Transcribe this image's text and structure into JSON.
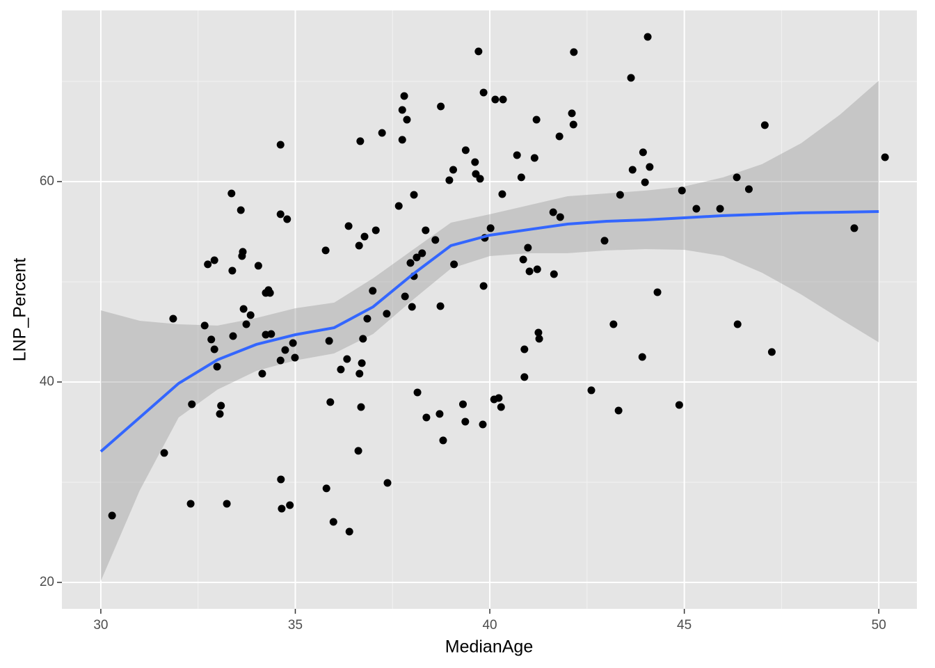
{
  "chart_data": {
    "type": "scatter",
    "x_label": "MedianAge",
    "y_label": "LNP_Percent",
    "xlim": [
      29.0,
      50.98
    ],
    "ylim": [
      17.36,
      77.08
    ],
    "xticks": [
      30,
      35,
      40,
      45,
      50
    ],
    "yticks": [
      20,
      40,
      60
    ],
    "minor_xticks": [
      32.5,
      37.5,
      42.5,
      47.5
    ],
    "minor_yticks": [
      30,
      50,
      70
    ],
    "grid": true,
    "background": "#e5e5e5",
    "series": [
      {
        "color": "#000000",
        "x": [
          30.29,
          31.63,
          31.86,
          32.31,
          32.34,
          32.67,
          32.75,
          32.84,
          32.92,
          32.92,
          32.99,
          33.06,
          33.09,
          33.24,
          33.36,
          33.38,
          33.4,
          33.6,
          33.63,
          33.65,
          33.67,
          33.74,
          33.85,
          34.05,
          34.15,
          34.24,
          34.24,
          34.31,
          34.35,
          34.38,
          34.62,
          34.62,
          34.62,
          34.63,
          34.65,
          34.74,
          34.79,
          34.86,
          34.94,
          34.99,
          35.78,
          35.8,
          35.87,
          35.9,
          35.98,
          36.17,
          36.33,
          36.37,
          36.39,
          36.62,
          36.64,
          36.65,
          36.67,
          36.69,
          36.71,
          36.74,
          36.78,
          36.85,
          36.99,
          37.07,
          37.23,
          37.35,
          37.37,
          37.66,
          37.75,
          37.75,
          37.8,
          37.82,
          37.87,
          37.96,
          38.0,
          38.05,
          38.05,
          38.12,
          38.14,
          38.26,
          38.35,
          38.37,
          38.6,
          38.71,
          38.73,
          38.74,
          38.8,
          38.96,
          39.06,
          39.08,
          39.31,
          39.37,
          39.38,
          39.62,
          39.64,
          39.71,
          39.75,
          39.82,
          39.84,
          39.84,
          39.87,
          40.02,
          40.11,
          40.14,
          40.23,
          40.29,
          40.34,
          40.32,
          40.7,
          40.81,
          40.86,
          40.89,
          40.89,
          40.98,
          41.02,
          41.15,
          41.2,
          41.22,
          41.25,
          41.27,
          41.63,
          41.65,
          41.79,
          41.81,
          42.11,
          42.15,
          42.16,
          42.61,
          42.95,
          43.18,
          43.31,
          43.35,
          43.63,
          43.67,
          43.92,
          43.94,
          43.99,
          44.06,
          44.11,
          44.31,
          44.87,
          44.94,
          45.31,
          45.92,
          46.35,
          46.37,
          46.66,
          47.07,
          47.25,
          49.37,
          50.16
        ],
        "values": [
          26.67,
          32.92,
          46.32,
          27.85,
          37.78,
          45.63,
          51.74,
          44.24,
          52.15,
          43.26,
          41.53,
          36.81,
          37.64,
          27.85,
          58.82,
          51.11,
          44.58,
          57.15,
          52.57,
          52.99,
          47.29,
          45.76,
          46.67,
          51.6,
          40.83,
          44.72,
          48.89,
          49.17,
          48.89,
          44.79,
          63.68,
          56.74,
          42.15,
          30.28,
          27.36,
          43.19,
          56.25,
          27.71,
          43.89,
          42.43,
          53.13,
          29.38,
          44.1,
          37.99,
          26.04,
          41.25,
          42.29,
          55.56,
          25.07,
          33.13,
          53.61,
          40.83,
          64.03,
          37.5,
          41.88,
          44.31,
          54.51,
          46.32,
          49.1,
          55.14,
          64.86,
          46.81,
          29.93,
          57.57,
          67.15,
          64.17,
          68.54,
          48.54,
          66.18,
          51.88,
          47.5,
          58.68,
          50.56,
          52.43,
          38.96,
          52.85,
          55.14,
          36.46,
          54.17,
          36.81,
          47.57,
          67.5,
          34.17,
          60.14,
          61.18,
          51.74,
          37.78,
          36.04,
          63.13,
          61.94,
          60.76,
          72.99,
          60.28,
          35.76,
          68.89,
          49.58,
          54.38,
          55.35,
          38.26,
          68.19,
          38.4,
          37.5,
          68.19,
          58.75,
          62.64,
          60.42,
          52.22,
          40.49,
          43.26,
          53.4,
          51.04,
          62.36,
          66.18,
          51.25,
          44.93,
          44.31,
          56.94,
          50.76,
          64.51,
          56.46,
          66.81,
          65.69,
          72.92,
          39.17,
          54.1,
          45.76,
          37.15,
          58.68,
          70.35,
          61.18,
          42.5,
          62.92,
          59.93,
          74.44,
          61.46,
          48.96,
          37.71,
          59.1,
          57.29,
          57.29,
          60.42,
          45.76,
          59.24,
          65.63,
          42.99,
          55.35,
          62.43
        ]
      }
    ],
    "smooth": {
      "color": "#3366ff",
      "band_color": "#999999",
      "x": [
        30,
        31,
        32,
        33,
        34,
        35,
        36,
        37,
        38,
        39,
        40,
        41,
        42,
        43,
        44,
        45,
        46,
        47,
        48,
        49,
        50
      ],
      "values": [
        33.06,
        36.46,
        39.86,
        42.22,
        43.75,
        44.72,
        45.42,
        47.5,
        50.69,
        53.61,
        54.65,
        55.21,
        55.76,
        56.04,
        56.18,
        56.39,
        56.6,
        56.74,
        56.88,
        56.94,
        57.01
      ],
      "lower": [
        20.14,
        29.17,
        36.46,
        39.24,
        41.11,
        42.15,
        42.85,
        44.79,
        48.13,
        51.32,
        52.57,
        52.85,
        52.85,
        53.13,
        53.26,
        53.19,
        52.57,
        50.9,
        48.75,
        46.32,
        43.96
      ],
      "upper": [
        47.15,
        46.11,
        45.76,
        45.63,
        46.39,
        47.36,
        47.92,
        50.35,
        53.13,
        55.9,
        56.74,
        57.64,
        58.54,
        58.82,
        59.1,
        59.51,
        60.42,
        61.74,
        63.82,
        66.67,
        70.07
      ]
    }
  }
}
